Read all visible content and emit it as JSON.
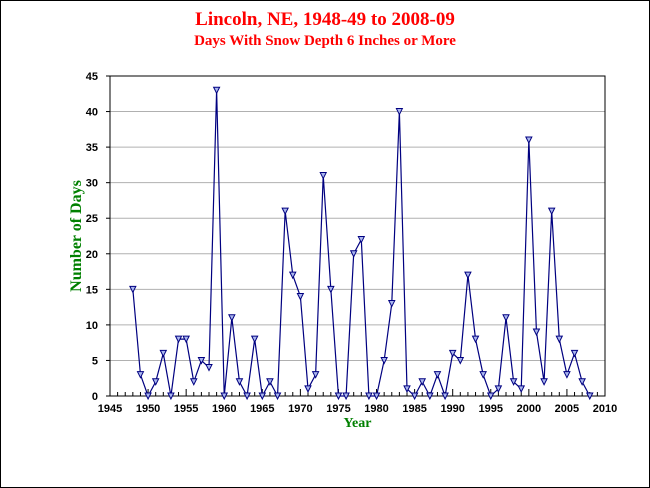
{
  "colors": {
    "title": "#ff0000",
    "axis_title": "#008000",
    "series_line": "#000080",
    "marker_fill": "#aab6ee",
    "grid": "#b0b0b0"
  },
  "chart_data": {
    "type": "line",
    "title": "Lincoln, NE, 1948-49 to 2008-09",
    "subtitle": "Days With Snow Depth 6 Inches or More",
    "xlabel": "Year",
    "ylabel": "Number of Days",
    "xlim": [
      1945,
      2010
    ],
    "ylim": [
      0,
      45
    ],
    "x_ticks": [
      1945,
      1950,
      1955,
      1960,
      1965,
      1970,
      1975,
      1980,
      1985,
      1990,
      1995,
      2000,
      2005,
      2010
    ],
    "y_ticks": [
      0,
      5,
      10,
      15,
      20,
      25,
      30,
      35,
      40,
      45
    ],
    "grid": "horizontal",
    "marker": "triangle-down",
    "series": [
      {
        "x": [
          1948,
          1949,
          1950,
          1951,
          1952,
          1953,
          1954,
          1955,
          1956,
          1957,
          1958,
          1959,
          1960,
          1961,
          1962,
          1963,
          1964,
          1965,
          1966,
          1967,
          1968,
          1969,
          1970,
          1971,
          1972,
          1973,
          1974,
          1975,
          1976,
          1977,
          1978,
          1979,
          1980,
          1981,
          1982,
          1983,
          1984,
          1985,
          1986,
          1987,
          1988,
          1989,
          1990,
          1991,
          1992,
          1993,
          1994,
          1995,
          1996,
          1997,
          1998,
          1999,
          2000,
          2001,
          2002,
          2003,
          2004,
          2005,
          2006,
          2007,
          2008
        ],
        "values": [
          15,
          3,
          0,
          2,
          6,
          0,
          8,
          8,
          2,
          5,
          4,
          43,
          0,
          11,
          2,
          0,
          8,
          0,
          2,
          0,
          26,
          17,
          14,
          1,
          3,
          31,
          15,
          0,
          0,
          20,
          22,
          0,
          0,
          5,
          13,
          40,
          1,
          0,
          2,
          0,
          3,
          0,
          6,
          5,
          17,
          8,
          3,
          0,
          1,
          11,
          2,
          1,
          36,
          9,
          2,
          26,
          8,
          3,
          6,
          2,
          0
        ]
      }
    ]
  }
}
